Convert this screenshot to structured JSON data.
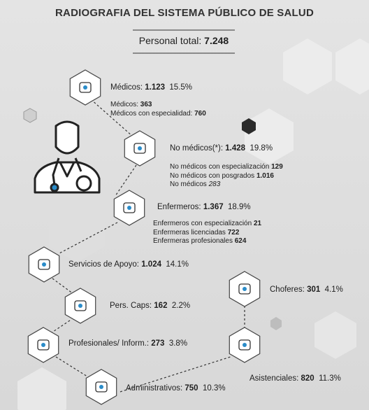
{
  "title": "RADIOGRAFIA DEL SISTEMA PÚBLICO DE SALUD",
  "total": {
    "label": "Personal total:",
    "value": "7.248"
  },
  "nodes": [
    {
      "label": "Médicos:",
      "count": "1.123",
      "percent": "15.5%",
      "details": [
        {
          "label": "Médicos:",
          "value": "363"
        },
        {
          "label": "Médicos con especialidad:",
          "value": "760"
        }
      ]
    },
    {
      "label": "No médicos(*):",
      "count": "1.428",
      "percent": "19.8%",
      "details": [
        {
          "label": "No médicos con especialización",
          "value": "129"
        },
        {
          "label": "No médicos con posgrados",
          "value": "1.016"
        },
        {
          "label": "No médicos",
          "value": "283"
        }
      ]
    },
    {
      "label": "Enfermeros:",
      "count": "1.367",
      "percent": "18.9%",
      "details": [
        {
          "label": "Enfermeros con especialización",
          "value": "21"
        },
        {
          "label": "Enfermeras licenciadas",
          "value": "722"
        },
        {
          "label": "Enfermeras profesionales",
          "value": "624"
        }
      ]
    },
    {
      "label": "Servicios de Apoyo:",
      "count": "1.024",
      "percent": "14.1%"
    },
    {
      "label": "Pers. Caps:",
      "count": "162",
      "percent": "2.2%"
    },
    {
      "label": "Profesionales/ Inform.:",
      "count": "273",
      "percent": "3.8%"
    },
    {
      "label": "Administrativos:",
      "count": "750",
      "percent": "10.3%"
    },
    {
      "label": "Asistenciales:",
      "count": "820",
      "percent": "11.3%"
    },
    {
      "label": "Choferes:",
      "count": "301",
      "percent": "4.1%"
    }
  ]
}
